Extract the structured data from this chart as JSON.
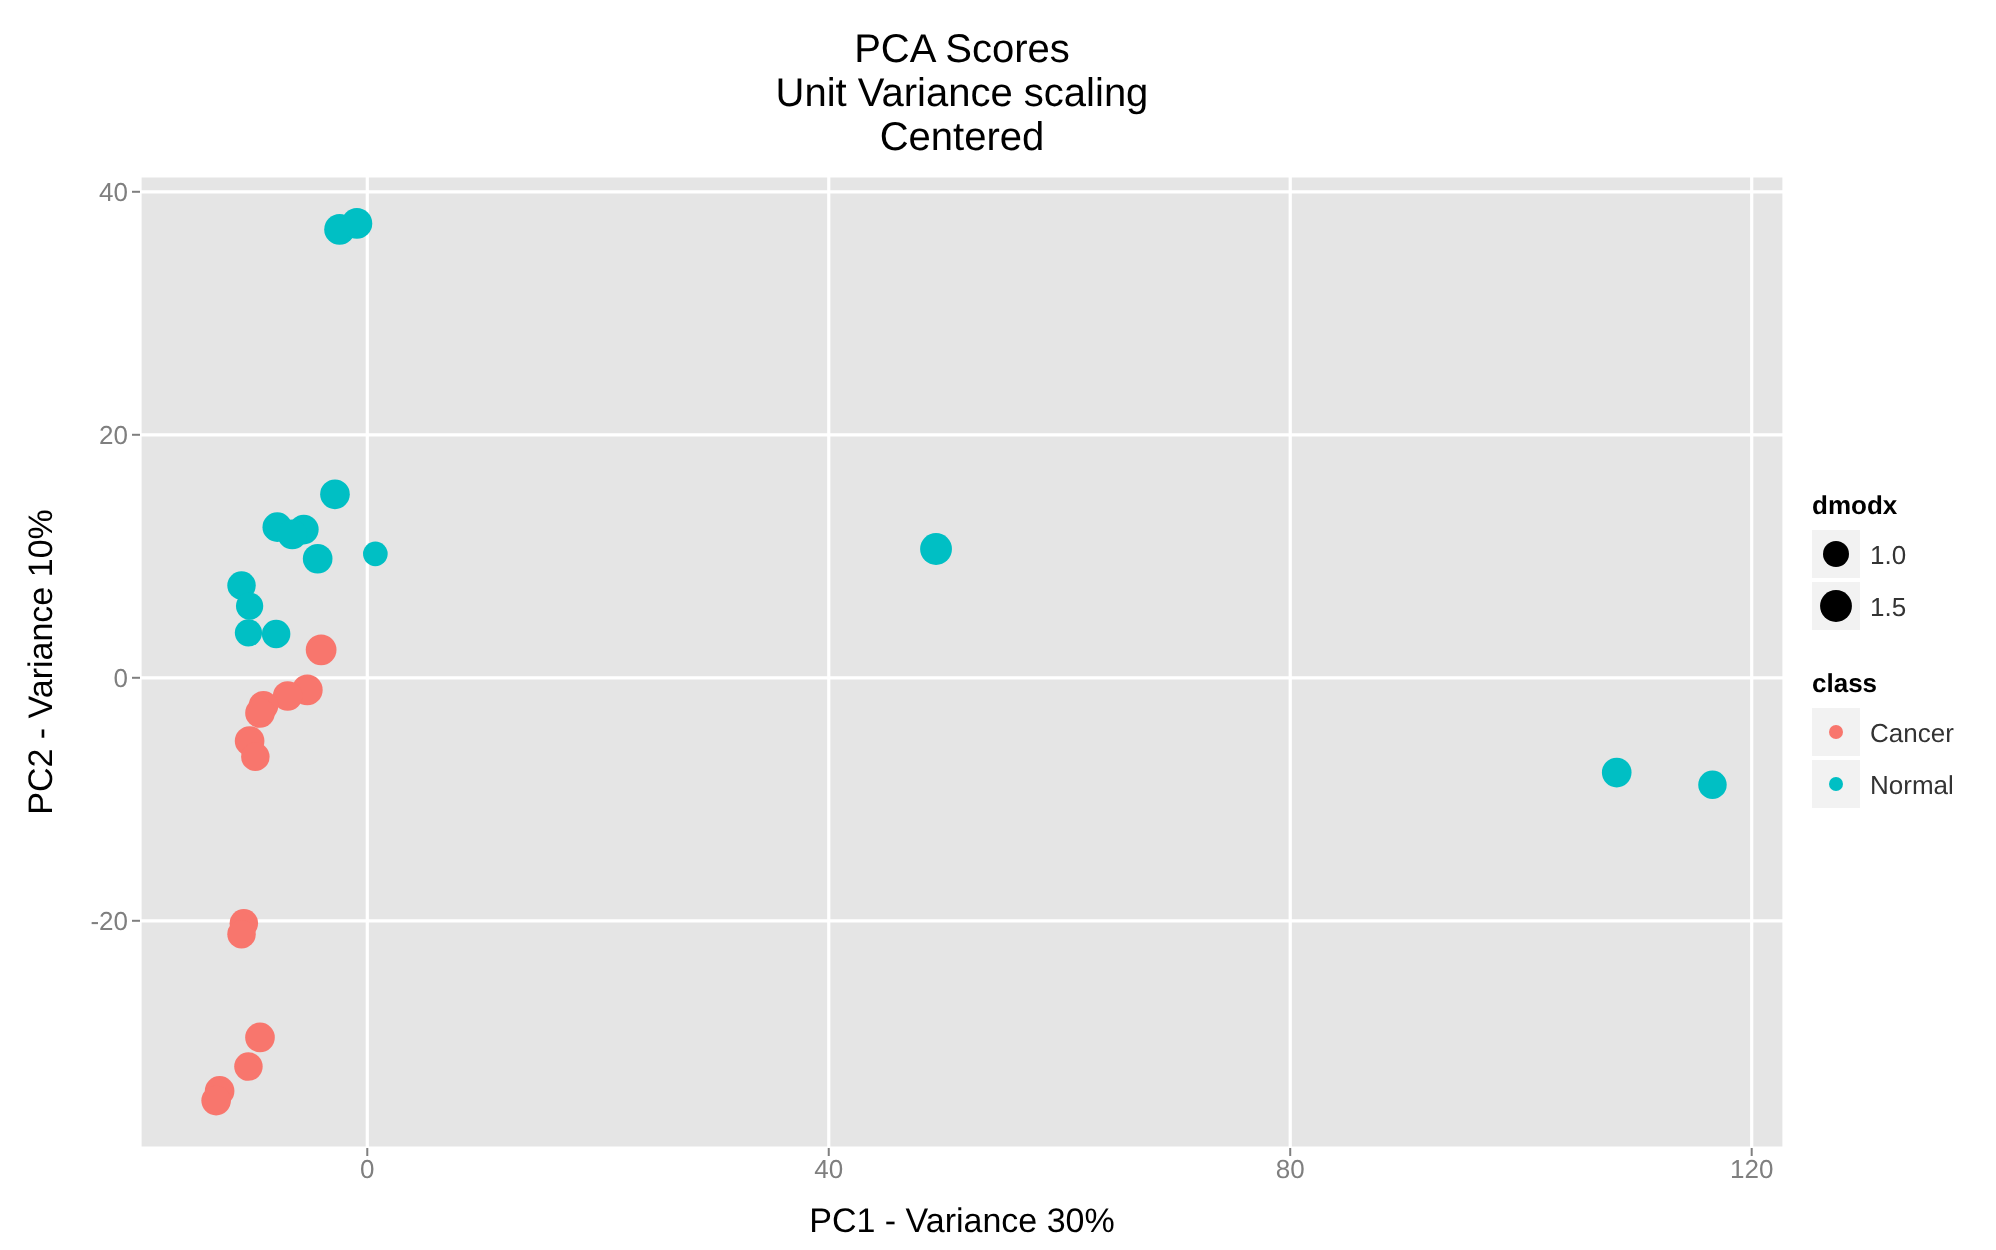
{
  "chart_data": {
    "type": "bubble",
    "title": "PCA Scores\nUnit Variance scaling\nCentered",
    "xlabel": "PC1 - Variance 30%",
    "ylabel": "PC2 - Variance 10%",
    "legend_title": [
      "dmodx",
      "class"
    ],
    "size_legend": [
      {
        "value": 1,
        "label": "1.0"
      },
      {
        "value": 1.5,
        "label": "1.5"
      }
    ],
    "series": [
      {
        "name": "Cancer",
        "color": "#f8766d",
        "x": [
          -4.0,
          -5.2,
          -6.9,
          -9.0,
          -9.3,
          -10.2,
          -9.7,
          -10.7,
          -10.9,
          -9.3,
          -10.3,
          -12.8,
          -13.1
        ],
        "values": [
          2.3,
          -1.0,
          -1.5,
          -2.3,
          -2.9,
          -5.2,
          -6.5,
          -20.2,
          -21.1,
          -29.6,
          -32.0,
          -34.0,
          -34.8
        ],
        "sizes": [
          1.4,
          1.4,
          1.3,
          1.3,
          1.3,
          1.3,
          1.2,
          1.2,
          1.2,
          1.3,
          1.2,
          1.3,
          1.3
        ]
      },
      {
        "name": "Normal",
        "color": "#00bfc4",
        "x": [
          -2.4,
          -0.9,
          -2.8,
          -7.8,
          -5.5,
          -6.5,
          -4.3,
          0.7,
          -10.9,
          -10.2,
          -10.3,
          -7.9,
          49.3,
          108.3,
          116.6
        ],
        "values": [
          36.9,
          37.4,
          15.1,
          12.4,
          12.2,
          11.8,
          9.8,
          10.2,
          7.6,
          5.9,
          3.7,
          3.6,
          10.6,
          -7.8,
          -8.8
        ],
        "sizes": [
          1.4,
          1.4,
          1.3,
          1.3,
          1.3,
          1.3,
          1.3,
          0.9,
          1.2,
          1.1,
          1.1,
          1.2,
          1.5,
          1.3,
          1.2
        ]
      }
    ],
    "xlim": [
      -19.7,
      122.8
    ],
    "ylim": [
      -38.7,
      41.3
    ],
    "xticks": [
      0,
      40,
      80,
      120
    ],
    "yticks": [
      -20,
      0,
      20,
      40
    ],
    "grid": true,
    "legend": "right",
    "marker": "circle"
  }
}
